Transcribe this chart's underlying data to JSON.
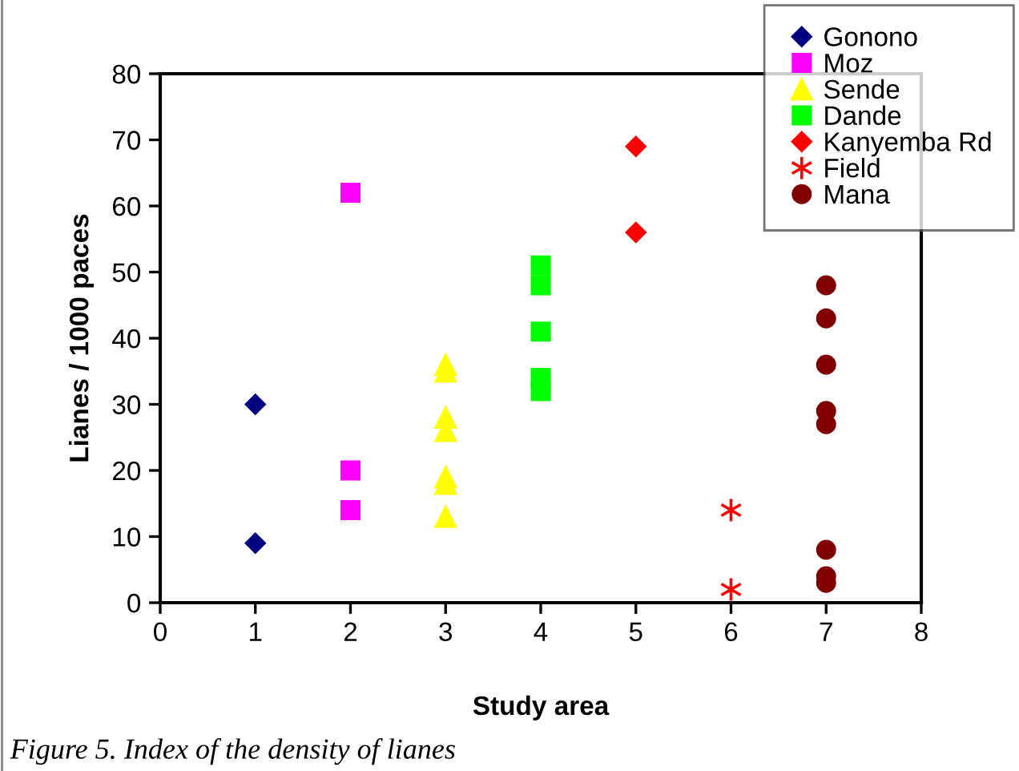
{
  "chart_data": {
    "type": "scatter",
    "xlabel": "Study area",
    "ylabel": "Lianes / 1000 paces",
    "xlim": [
      0,
      8
    ],
    "ylim": [
      0,
      80
    ],
    "xticks": [
      0,
      1,
      2,
      3,
      4,
      5,
      6,
      7,
      8
    ],
    "yticks": [
      0,
      10,
      20,
      30,
      40,
      50,
      60,
      70,
      80
    ],
    "grid": false,
    "legend": "top right",
    "annotations": [
      "Figure 5. Index of the density of lianes"
    ],
    "series": [
      {
        "name": "Gonono",
        "color": "#000080",
        "marker": "diamond",
        "x": [
          1,
          1
        ],
        "values": [
          30,
          9
        ]
      },
      {
        "name": "Moz",
        "color": "#ff00ff",
        "marker": "square",
        "x": [
          2,
          2,
          2
        ],
        "values": [
          62,
          20,
          14
        ]
      },
      {
        "name": "Sende",
        "color": "#ffff00",
        "marker": "triangle",
        "x": [
          3,
          3,
          3,
          3,
          3,
          3,
          3
        ],
        "values": [
          36,
          35,
          28,
          26,
          19,
          18,
          13
        ]
      },
      {
        "name": "Dande",
        "color": "#00ff00",
        "marker": "square",
        "x": [
          4,
          4,
          4,
          4,
          4
        ],
        "values": [
          51,
          48,
          41,
          34,
          32
        ]
      },
      {
        "name": "Kanyemba Rd",
        "color": "#ff0000",
        "marker": "diamond",
        "x": [
          5,
          5
        ],
        "values": [
          69,
          56
        ]
      },
      {
        "name": "Field",
        "color": "#ff0000",
        "marker": "cross",
        "x": [
          6,
          6
        ],
        "values": [
          14,
          2
        ]
      },
      {
        "name": "Mana",
        "color": "#800000",
        "marker": "circle",
        "x": [
          7,
          7,
          7,
          7,
          7,
          7,
          7,
          7
        ],
        "values": [
          48,
          43,
          36,
          29,
          27,
          8,
          4,
          3
        ]
      }
    ]
  }
}
